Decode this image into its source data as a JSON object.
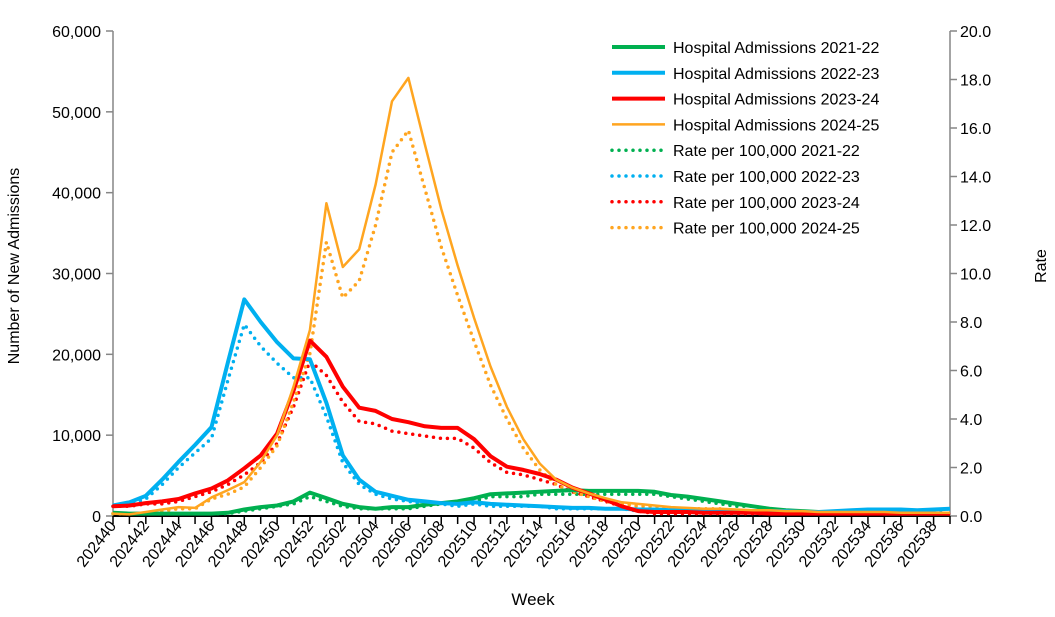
{
  "chart_data": {
    "type": "line",
    "title": "",
    "xlabel": "Week",
    "ylabel": "Number of New Admissions",
    "y2label": "Rate",
    "ylim": [
      0,
      60000
    ],
    "y2lim": [
      0,
      20
    ],
    "yticks": [
      "0",
      "10,000",
      "20,000",
      "30,000",
      "40,000",
      "50,000",
      "60,000"
    ],
    "y2ticks": [
      "0.0",
      "2.0",
      "4.0",
      "6.0",
      "8.0",
      "10.0",
      "12.0",
      "14.0",
      "16.0",
      "18.0",
      "20.0"
    ],
    "grid": false,
    "legend_position": "top-right",
    "categories": [
      "202440",
      "202441",
      "202442",
      "202443",
      "202444",
      "202445",
      "202446",
      "202447",
      "202448",
      "202449",
      "202450",
      "202451",
      "202452",
      "202501",
      "202502",
      "202503",
      "202504",
      "202505",
      "202506",
      "202507",
      "202508",
      "202509",
      "202510",
      "202511",
      "202512",
      "202513",
      "202514",
      "202515",
      "202516",
      "202517",
      "202518",
      "202519",
      "202520",
      "202521",
      "202522",
      "202523",
      "202524",
      "202525",
      "202526",
      "202527",
      "202528",
      "202529",
      "202530",
      "202531",
      "202532",
      "202533",
      "202534",
      "202535",
      "202536",
      "202537",
      "202538",
      "202539"
    ],
    "tick_labels": [
      "202440",
      "202442",
      "202444",
      "202446",
      "202448",
      "202450",
      "202452",
      "202502",
      "202504",
      "202506",
      "202508",
      "202510",
      "202512",
      "202514",
      "202516",
      "202518",
      "202520",
      "202522",
      "202524",
      "202526",
      "202528",
      "202530",
      "202532",
      "202534",
      "202536",
      "202538"
    ],
    "series": [
      {
        "name": "Hospital Admissions 2021-22",
        "axis": "left",
        "style": "solid-thick",
        "color": "#00b050",
        "values": [
          400,
          300,
          300,
          300,
          300,
          300,
          300,
          400,
          800,
          1100,
          1300,
          1800,
          2900,
          2200,
          1500,
          1100,
          900,
          1100,
          1100,
          1400,
          1600,
          1800,
          2200,
          2700,
          2800,
          2900,
          3000,
          3100,
          3200,
          3100,
          3100,
          3100,
          3100,
          3000,
          2600,
          2400,
          2100,
          1800,
          1500,
          1200,
          900,
          700,
          600,
          500,
          400,
          400,
          400,
          300,
          300,
          300,
          300,
          300
        ]
      },
      {
        "name": "Hospital Admissions 2022-23",
        "axis": "left",
        "style": "solid-thick",
        "color": "#00b0f0",
        "values": [
          1300,
          1700,
          2500,
          4500,
          6700,
          8800,
          11000,
          19000,
          26800,
          24000,
          21500,
          19500,
          19400,
          14000,
          7500,
          4500,
          3000,
          2500,
          2000,
          1800,
          1600,
          1500,
          1700,
          1500,
          1400,
          1300,
          1200,
          1100,
          1000,
          1000,
          900,
          900,
          800,
          800,
          700,
          700,
          700,
          600,
          600,
          600,
          600,
          600,
          500,
          500,
          600,
          700,
          800,
          800,
          800,
          700,
          800,
          900
        ]
      },
      {
        "name": "Hospital Admissions 2023-24",
        "axis": "left",
        "style": "solid-thick",
        "color": "#ff0000",
        "values": [
          1200,
          1300,
          1600,
          1800,
          2100,
          2800,
          3400,
          4400,
          5900,
          7500,
          10200,
          15500,
          21700,
          19700,
          16000,
          13400,
          13000,
          12000,
          11600,
          11100,
          10900,
          10900,
          9500,
          7400,
          6100,
          5700,
          5200,
          4500,
          3500,
          2800,
          2000,
          1200,
          600,
          500,
          500,
          500,
          400,
          400,
          400,
          400,
          300,
          300,
          300,
          300,
          300,
          300,
          300,
          300,
          300,
          300,
          300,
          300
        ]
      },
      {
        "name": "Hospital Admissions 2024-25",
        "axis": "left",
        "style": "solid-thin",
        "color": "#ffa520",
        "values": [
          300,
          200,
          500,
          800,
          1100,
          1000,
          2300,
          3200,
          4200,
          6700,
          10000,
          16000,
          23000,
          38700,
          30800,
          33000,
          41000,
          51300,
          54200,
          46000,
          38000,
          31000,
          24500,
          18500,
          13500,
          9500,
          6500,
          4500,
          3500,
          2800,
          2200,
          1700,
          1500,
          1300,
          1100,
          1000,
          900,
          900,
          800,
          700,
          700,
          600,
          600,
          500,
          500,
          500,
          500,
          500,
          400,
          400,
          400,
          400
        ]
      },
      {
        "name": "Rate per 100,000 2021-22",
        "axis": "right",
        "style": "dotted",
        "color": "#00b050",
        "values": [
          0.1,
          0.1,
          0.1,
          0.1,
          0.1,
          0.1,
          0.1,
          0.1,
          0.2,
          0.3,
          0.4,
          0.5,
          0.8,
          0.6,
          0.4,
          0.3,
          0.3,
          0.3,
          0.3,
          0.4,
          0.5,
          0.5,
          0.6,
          0.8,
          0.8,
          0.8,
          0.9,
          0.9,
          0.9,
          0.9,
          0.9,
          0.9,
          0.9,
          0.9,
          0.8,
          0.7,
          0.6,
          0.5,
          0.4,
          0.4,
          0.3,
          0.2,
          0.2,
          0.1,
          0.1,
          0.1,
          0.1,
          0.1,
          0.1,
          0.1,
          0.1,
          0.1
        ]
      },
      {
        "name": "Rate per 100,000 2022-23",
        "axis": "right",
        "style": "dotted",
        "color": "#00b0f0",
        "values": [
          0.4,
          0.5,
          0.7,
          1.3,
          2.0,
          2.6,
          3.2,
          5.6,
          7.9,
          7.0,
          6.3,
          5.7,
          5.7,
          4.1,
          2.2,
          1.3,
          0.9,
          0.7,
          0.6,
          0.5,
          0.5,
          0.4,
          0.5,
          0.4,
          0.4,
          0.4,
          0.4,
          0.3,
          0.3,
          0.3,
          0.3,
          0.3,
          0.2,
          0.2,
          0.2,
          0.2,
          0.2,
          0.2,
          0.2,
          0.2,
          0.2,
          0.2,
          0.1,
          0.1,
          0.2,
          0.2,
          0.2,
          0.2,
          0.2,
          0.2,
          0.2,
          0.3
        ]
      },
      {
        "name": "Rate per 100,000 2023-24",
        "axis": "right",
        "style": "dotted",
        "color": "#ff0000",
        "values": [
          0.4,
          0.4,
          0.5,
          0.5,
          0.6,
          0.8,
          1.0,
          1.3,
          1.7,
          2.2,
          3.0,
          4.5,
          6.4,
          5.8,
          4.7,
          3.9,
          3.8,
          3.5,
          3.4,
          3.3,
          3.2,
          3.2,
          2.8,
          2.2,
          1.8,
          1.7,
          1.5,
          1.3,
          1.0,
          0.8,
          0.6,
          0.4,
          0.2,
          0.1,
          0.1,
          0.1,
          0.1,
          0.1,
          0.1,
          0.1,
          0.1,
          0.1,
          0.1,
          0.1,
          0.1,
          0.1,
          0.1,
          0.1,
          0.1,
          0.1,
          0.1,
          0.1
        ]
      },
      {
        "name": "Rate per 100,000 2024-25",
        "axis": "right",
        "style": "dotted",
        "color": "#ffa520",
        "values": [
          0.1,
          0.1,
          0.1,
          0.2,
          0.3,
          0.3,
          0.7,
          0.9,
          1.2,
          2.0,
          2.9,
          4.7,
          6.7,
          11.3,
          9.0,
          9.7,
          12.0,
          15.0,
          15.9,
          13.5,
          11.1,
          9.1,
          7.2,
          5.4,
          4.0,
          2.8,
          1.9,
          1.3,
          1.0,
          0.8,
          0.6,
          0.5,
          0.4,
          0.4,
          0.3,
          0.3,
          0.3,
          0.3,
          0.2,
          0.2,
          0.2,
          0.2,
          0.2,
          0.1,
          0.1,
          0.1,
          0.1,
          0.1,
          0.1,
          0.1,
          0.1,
          0.1
        ]
      }
    ]
  }
}
